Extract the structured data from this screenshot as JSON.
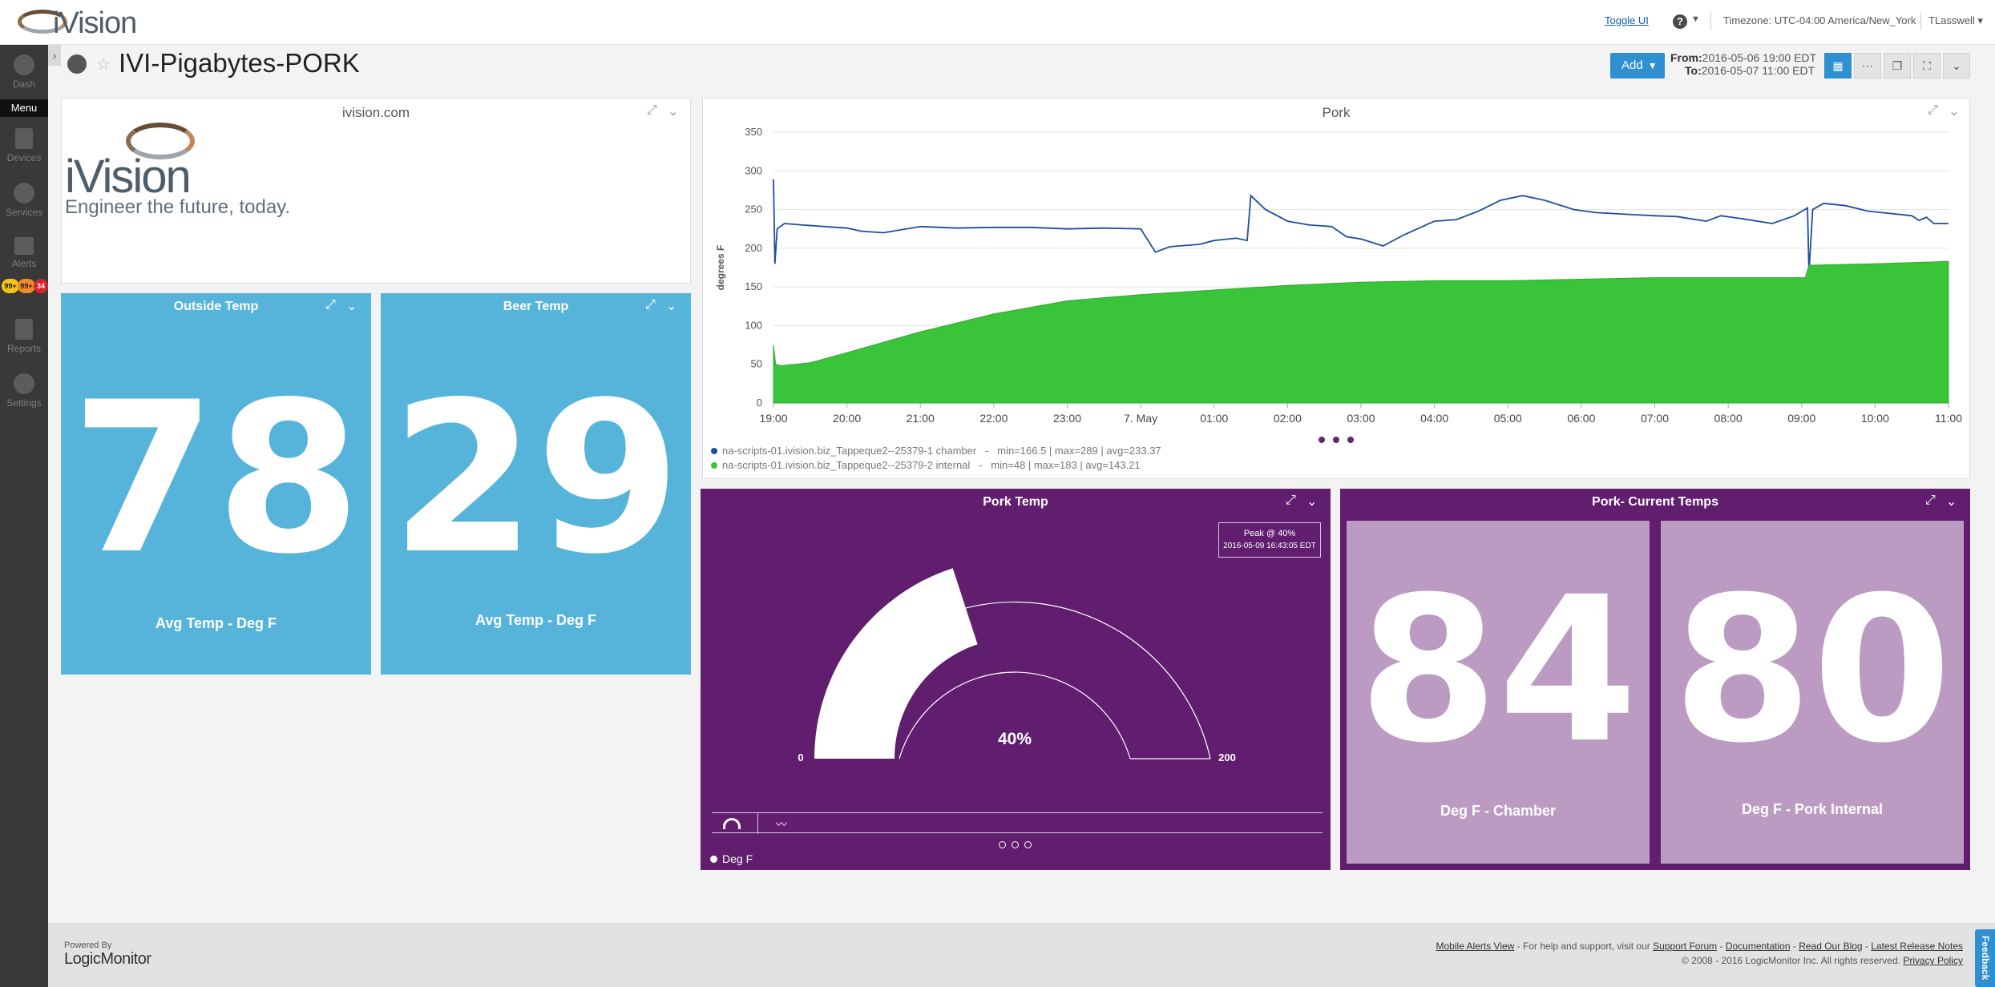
{
  "app": {
    "logo_text": "iVision",
    "toggle_ui": "Toggle UI",
    "help": "?",
    "timezone": "Timezone: UTC-04:00 America/New_York",
    "user": "TLasswell"
  },
  "nav": {
    "items": [
      {
        "label": "Dash",
        "icon": "dashboard-icon"
      },
      {
        "label": "Devices",
        "icon": "server-icon"
      },
      {
        "label": "Services",
        "icon": "globe-icon"
      },
      {
        "label": "Alerts",
        "icon": "alert-icon"
      },
      {
        "label": "Reports",
        "icon": "report-icon"
      },
      {
        "label": "Settings",
        "icon": "gear-icon"
      }
    ],
    "menu_label": "Menu",
    "alert_counts": [
      "99+",
      "99+",
      "34"
    ],
    "alert_colors": [
      "#f5c518",
      "#f28b25",
      "#d8242b"
    ]
  },
  "header": {
    "title": "IVI-Pigabytes-PORK",
    "add_label": "Add",
    "from_label": "From:",
    "from_value": "2016-05-06 19:00 EDT",
    "to_label": "To:",
    "to_value": "2016-05-07 11:00 EDT"
  },
  "widgets": {
    "logo": {
      "title": "ivision.com",
      "brand": "iVision",
      "tagline": "Engineer the future, today."
    },
    "outside": {
      "title": "Outside Temp",
      "value": "78",
      "sub": "Avg Temp - Deg F"
    },
    "beer": {
      "title": "Beer Temp",
      "value": "29",
      "sub": "Avg Temp - Deg F"
    },
    "pork_chart": {
      "title": "Pork",
      "legend": [
        {
          "name": "na-scripts-01.ivision.biz_Tappeque2--25379-1 chamber",
          "stats": "min=166.5 | max=289 | avg=233.37",
          "color": "#1f4e9c"
        },
        {
          "name": "na-scripts-01.ivision.biz_Tappeque2--25379-2 internal",
          "stats": "min=48 | max=183 | avg=143.21",
          "color": "#3ac43a"
        }
      ]
    },
    "pork_temp": {
      "title": "Pork Temp",
      "value": "40%",
      "min": "0",
      "max": "200",
      "peak_label": "Peak @ 40%",
      "peak_time": "2016-05-09 16:43:05 EDT",
      "legend": "Deg F"
    },
    "current": {
      "title": "Pork- Current Temps",
      "chamber_value": "84",
      "chamber_label": "Deg F - Chamber",
      "internal_value": "80",
      "internal_label": "Deg F - Pork Internal"
    }
  },
  "chart_data": {
    "type": "area",
    "title": "Pork",
    "xlabel": "",
    "ylabel": "degrees F",
    "ylim": [
      0,
      350
    ],
    "yticks": [
      0,
      50,
      100,
      150,
      200,
      250,
      300,
      350
    ],
    "categories": [
      "19:00",
      "20:00",
      "21:00",
      "22:00",
      "23:00",
      "7. May",
      "01:00",
      "02:00",
      "03:00",
      "04:00",
      "05:00",
      "06:00",
      "07:00",
      "08:00",
      "09:00",
      "10:00",
      "11:00"
    ],
    "series": [
      {
        "name": "na-scripts-01.ivision.biz_Tappeque2--25379-1 chamber",
        "render": "line",
        "color": "#1f4e9c",
        "x": [
          0,
          0.02,
          0.05,
          0.15,
          0.4,
          0.7,
          1.0,
          1.2,
          1.5,
          2.0,
          2.5,
          3.0,
          3.5,
          4.0,
          4.5,
          5.0,
          5.2,
          5.4,
          5.8,
          6.0,
          6.3,
          6.45,
          6.5,
          6.7,
          7.0,
          7.3,
          7.6,
          7.8,
          8.0,
          8.3,
          8.6,
          9.0,
          9.3,
          9.6,
          9.9,
          10.2,
          10.5,
          10.9,
          11.2,
          11.6,
          12.0,
          12.3,
          12.5,
          12.7,
          12.9,
          13.2,
          13.6,
          13.9,
          14.08,
          14.1,
          14.15,
          14.3,
          14.6,
          14.9,
          15.2,
          15.5,
          15.6,
          15.7,
          15.8,
          16.0
        ],
        "values": [
          289,
          180,
          225,
          232,
          230,
          228,
          226,
          222,
          220,
          228,
          226,
          227,
          227,
          225,
          226,
          225,
          195,
          202,
          205,
          210,
          213,
          210,
          268,
          250,
          235,
          230,
          228,
          215,
          212,
          203,
          218,
          235,
          237,
          248,
          262,
          268,
          262,
          250,
          246,
          244,
          242,
          241,
          238,
          235,
          242,
          238,
          232,
          242,
          252,
          168,
          250,
          258,
          255,
          248,
          245,
          242,
          236,
          240,
          232,
          232
        ]
      },
      {
        "name": "na-scripts-01.ivision.biz_Tappeque2--25379-2 internal",
        "render": "area",
        "color": "#3ac43a",
        "x": [
          0,
          0.03,
          0.1,
          0.5,
          1.0,
          2.0,
          3.0,
          4.0,
          5.0,
          6.0,
          7.0,
          8.0,
          9.0,
          10.0,
          11.0,
          12.0,
          13.0,
          14.05,
          14.1,
          15.0,
          16.0
        ],
        "values": [
          75,
          50,
          48,
          52,
          65,
          92,
          115,
          132,
          140,
          146,
          152,
          156,
          158,
          158,
          160,
          162,
          162,
          162,
          178,
          180,
          183
        ]
      }
    ],
    "legend": "bottom-left",
    "grid": true
  }
}
